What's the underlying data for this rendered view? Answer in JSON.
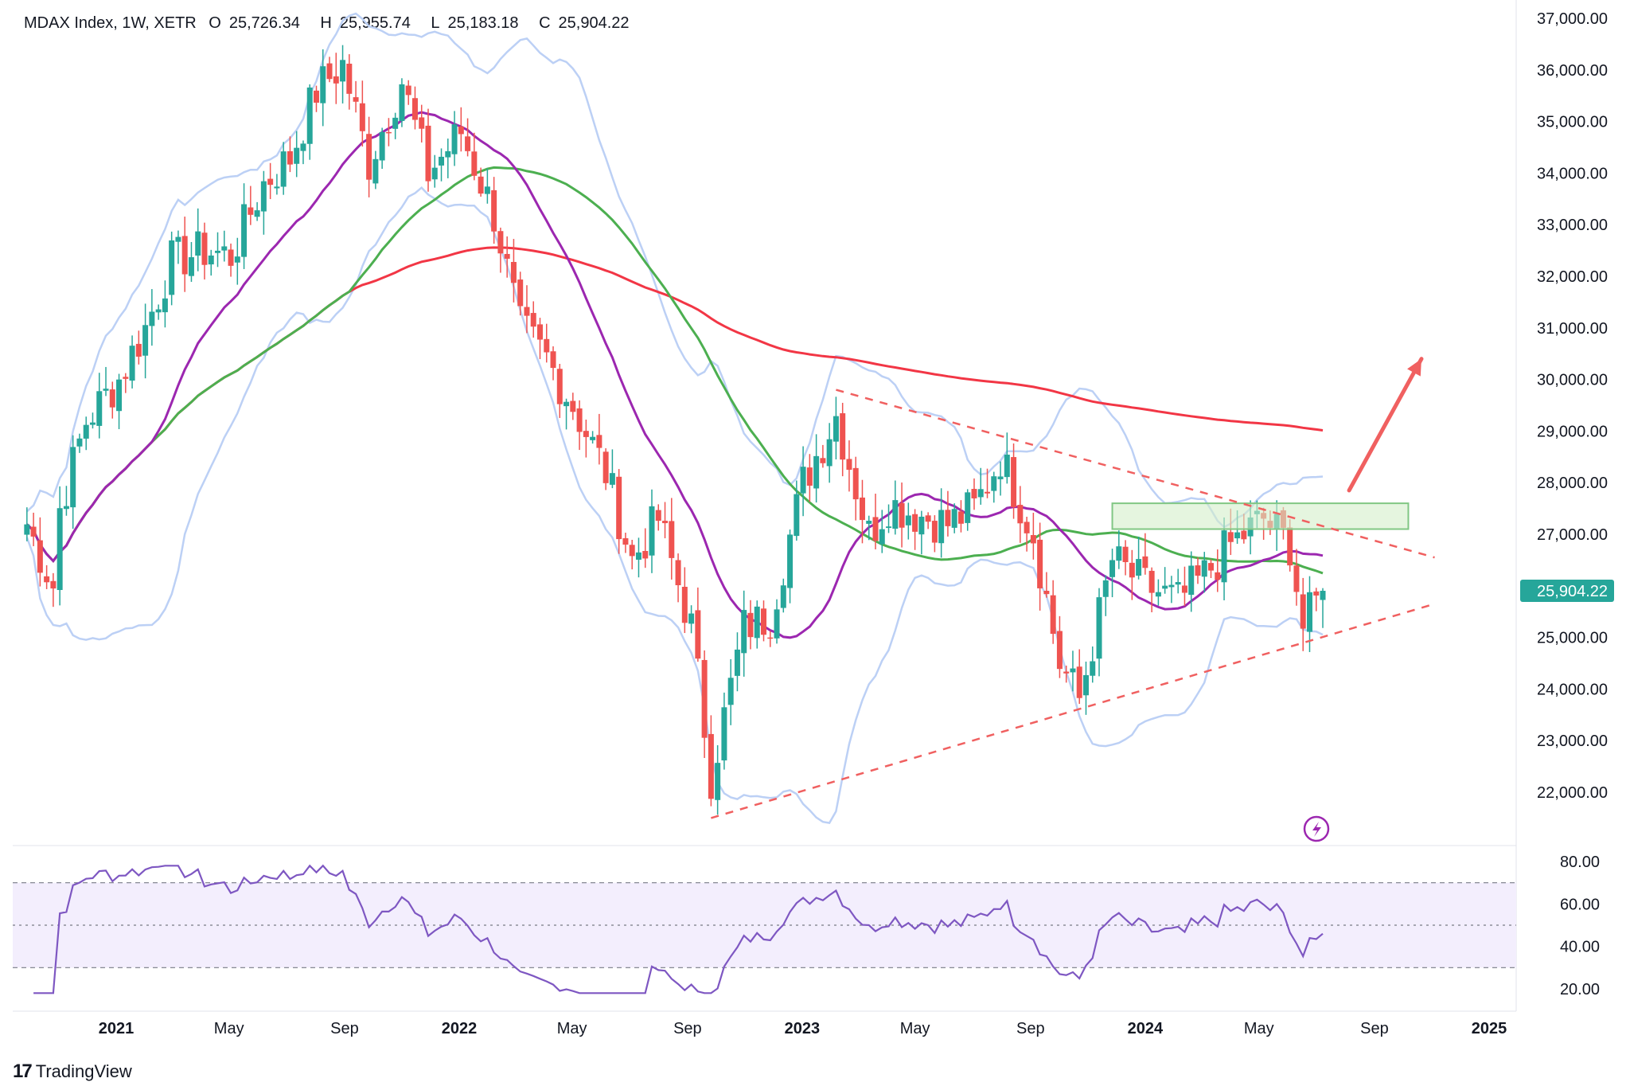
{
  "header": {
    "symbol": "MDAX Index, 1W, XETR",
    "open_label": "O",
    "open": "25,726.34",
    "high_label": "H",
    "high": "25,955.74",
    "low_label": "L",
    "low": "25,183.18",
    "close_label": "C",
    "close": "25,904.22"
  },
  "price_tag": "25,904.22",
  "brand": {
    "name": "TradingView",
    "logo_icon": "tradingview-logo-icon"
  },
  "colors": {
    "up": "#26a69a",
    "down": "#ef5350",
    "ma_purple": "#9c27b0",
    "ma_green": "#4caf50",
    "ma_red": "#f23645",
    "bollinger": "#bcd0f5",
    "rsi": "#7e57c2",
    "rsi_band": "#f3eefd",
    "zone_fill": "#d4efc9",
    "zone_border": "#81c784",
    "trend": "#f06060"
  },
  "chart_data": [
    {
      "type": "line",
      "panel": "price",
      "ylim": [
        21000,
        37300
      ],
      "y_ticks": [
        "37,000.00",
        "36,000.00",
        "35,000.00",
        "34,000.00",
        "33,000.00",
        "32,000.00",
        "31,000.00",
        "30,000.00",
        "29,000.00",
        "28,000.00",
        "27,000.00",
        "25,904.22",
        "25,000.00",
        "24,000.00",
        "23,000.00",
        "22,000.00"
      ],
      "y_tick_values": [
        37000,
        36000,
        35000,
        34000,
        33000,
        32000,
        31000,
        30000,
        29000,
        28000,
        27000,
        25904.22,
        25000,
        24000,
        23000,
        22000
      ],
      "x_ticks": [
        "2021",
        "May",
        "Sep",
        "2022",
        "May",
        "Sep",
        "2023",
        "May",
        "Sep",
        "2024",
        "May",
        "Sep",
        "2025"
      ],
      "x_tick_dates": [
        "2021-01-01",
        "2021-05-01",
        "2021-09-01",
        "2022-01-01",
        "2022-05-01",
        "2022-09-01",
        "2023-01-01",
        "2023-05-01",
        "2023-09-01",
        "2024-01-01",
        "2024-05-01",
        "2024-09-01",
        "2025-01-01"
      ],
      "candles_approx_close": [
        [
          "2020-09-28",
          27200
        ],
        [
          "2020-10-26",
          26000
        ],
        [
          "2020-11-02",
          27500
        ],
        [
          "2020-11-30",
          29200
        ],
        [
          "2021-01-04",
          30000
        ],
        [
          "2021-02-01",
          31000
        ],
        [
          "2021-03-01",
          32300
        ],
        [
          "2021-04-05",
          32500
        ],
        [
          "2021-05-03",
          32400
        ],
        [
          "2021-06-07",
          33800
        ],
        [
          "2021-07-05",
          34300
        ],
        [
          "2021-08-02",
          35600
        ],
        [
          "2021-08-30",
          36100
        ],
        [
          "2021-09-27",
          34200
        ],
        [
          "2021-11-01",
          35800
        ],
        [
          "2021-11-29",
          34000
        ],
        [
          "2022-01-03",
          34800
        ],
        [
          "2022-02-07",
          33200
        ],
        [
          "2022-03-07",
          31000
        ],
        [
          "2022-04-04",
          30400
        ],
        [
          "2022-05-02",
          29500
        ],
        [
          "2022-06-06",
          28200
        ],
        [
          "2022-07-04",
          26500
        ],
        [
          "2022-08-01",
          27300
        ],
        [
          "2022-09-05",
          25200
        ],
        [
          "2022-09-26",
          22300
        ],
        [
          "2022-10-31",
          25200
        ],
        [
          "2022-11-28",
          25400
        ],
        [
          "2023-01-02",
          28000
        ],
        [
          "2023-02-06",
          29300
        ],
        [
          "2023-03-13",
          27000
        ],
        [
          "2023-04-03",
          27600
        ],
        [
          "2023-05-01",
          27400
        ],
        [
          "2023-06-05",
          27200
        ],
        [
          "2023-07-03",
          27500
        ],
        [
          "2023-07-31",
          28500
        ],
        [
          "2023-09-04",
          27000
        ],
        [
          "2023-10-02",
          24500
        ],
        [
          "2023-10-23",
          23800
        ],
        [
          "2023-11-27",
          26500
        ],
        [
          "2024-01-01",
          26000
        ],
        [
          "2024-02-05",
          25700
        ],
        [
          "2024-03-04",
          26200
        ],
        [
          "2024-04-01",
          26800
        ],
        [
          "2024-05-06",
          27300
        ],
        [
          "2024-06-03",
          26800
        ],
        [
          "2024-06-17",
          25200
        ],
        [
          "2024-07-08",
          25904.22
        ]
      ],
      "series": [
        {
          "name": "",
          "role": "ma_short",
          "color": "#9c27b0"
        },
        {
          "name": "",
          "role": "ma_mid",
          "color": "#4caf50"
        },
        {
          "name": "",
          "role": "ma_long",
          "color": "#f23645"
        },
        {
          "name": "",
          "role": "bollinger_upper",
          "color": "#bcd0f5"
        },
        {
          "name": "",
          "role": "bollinger_lower",
          "color": "#bcd0f5"
        }
      ],
      "annotations": {
        "zone": {
          "from_date": "2023-11-27",
          "to_date": "2024-10-07",
          "y_low": 27100,
          "y_high": 27600
        },
        "upper_trendline": {
          "from": [
            "2023-02-06",
            29800
          ],
          "to": [
            "2024-11-04",
            26550
          ]
        },
        "lower_trendline": {
          "from": [
            "2022-09-26",
            21500
          ],
          "to": [
            "2024-11-04",
            25650
          ]
        },
        "arrow": {
          "from": [
            "2024-08-05",
            27850
          ],
          "to": [
            "2024-10-21",
            30400
          ]
        }
      },
      "grid": false,
      "legend": "top-left"
    },
    {
      "type": "line",
      "panel": "rsi",
      "ylim": [
        15,
        85
      ],
      "y_ticks": [
        "80.00",
        "60.00",
        "40.00",
        "20.00"
      ],
      "y_tick_values": [
        80,
        60,
        40,
        20
      ],
      "band": [
        30,
        70
      ],
      "midline": 50,
      "grid": false
    }
  ]
}
